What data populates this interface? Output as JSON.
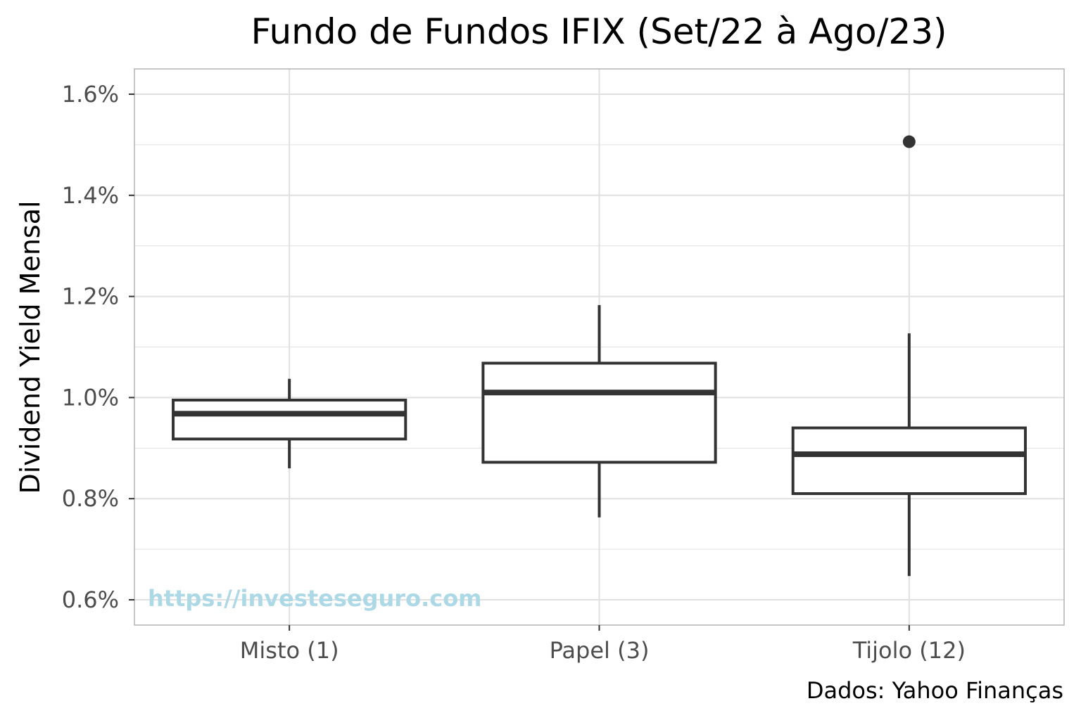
{
  "chart_data": {
    "type": "boxplot",
    "title": "Fundo de Fundos IFIX (Set/22 à Ago/23)",
    "ylabel": "Dividend Yield Mensal",
    "xlabel": "",
    "caption": "Dados: Yahoo Finanças",
    "watermark": "https://investeseguro.com",
    "ylim": [
      0.55,
      1.65
    ],
    "y_ticks": [
      {
        "value": 0.6,
        "label": "0.6%"
      },
      {
        "value": 0.8,
        "label": "0.8%"
      },
      {
        "value": 1.0,
        "label": "1.0%"
      },
      {
        "value": 1.2,
        "label": "1.2%"
      },
      {
        "value": 1.4,
        "label": "1.4%"
      },
      {
        "value": 1.6,
        "label": "1.6%"
      }
    ],
    "grid": true,
    "categories": [
      "Misto (1)",
      "Papel (3)",
      "Tijolo (12)"
    ],
    "boxes": [
      {
        "category": "Misto (1)",
        "whisker_low": 0.86,
        "q1": 0.918,
        "median": 0.968,
        "q3": 0.995,
        "whisker_high": 1.037,
        "outliers": []
      },
      {
        "category": "Papel (3)",
        "whisker_low": 0.763,
        "q1": 0.872,
        "median": 1.01,
        "q3": 1.068,
        "whisker_high": 1.183,
        "outliers": []
      },
      {
        "category": "Tijolo (12)",
        "whisker_low": 0.647,
        "q1": 0.81,
        "median": 0.888,
        "q3": 0.94,
        "whisker_high": 1.127,
        "outliers": [
          1.506
        ]
      }
    ],
    "colors": {
      "box_line": "#333333",
      "grid": "#e0e0e0",
      "panel_border": "#b3b3b3",
      "tick_text": "#4d4d4d",
      "watermark": "#add8e6"
    }
  }
}
